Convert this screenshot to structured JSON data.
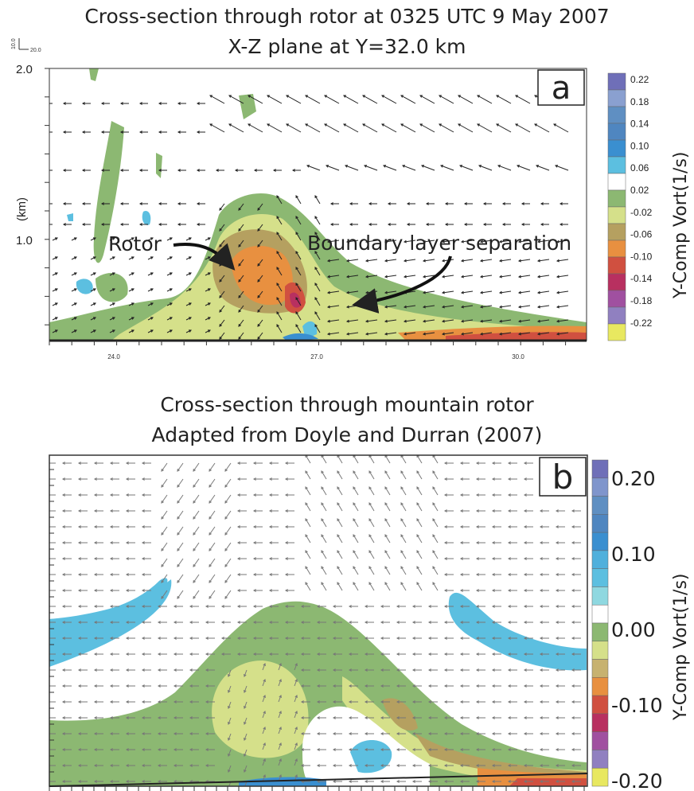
{
  "chart_data": [
    {
      "type": "heatmap",
      "panel_label": "a",
      "title": "Cross-section through rotor at 0325 UTC 9 May 2007",
      "subtitle": "X-Z plane at Y=32.0 km",
      "ylabel": "(km)",
      "y_ticks": [
        "1.0",
        "2.0"
      ],
      "x_ticks": [
        "24.0",
        "27.0",
        "30.0"
      ],
      "xlim": [
        22.8,
        30.8
      ],
      "ylim": [
        0.4,
        2.0
      ],
      "reference_vector": [
        "10.0",
        "20.0"
      ],
      "colorbar_label": "Y-Comp Vort(1/s)",
      "colorbar_levels": [
        "0.22",
        "0.18",
        "0.14",
        "0.10",
        "0.06",
        "0.02",
        "-0.02",
        "-0.06",
        "-0.10",
        "-0.14",
        "-0.18",
        "-0.22"
      ],
      "annotations": [
        "Rotor",
        "Boundary layer separation"
      ]
    },
    {
      "type": "heatmap",
      "panel_label": "b",
      "title": "Cross-section through mountain rotor",
      "subtitle": "Adapted from Doyle and Durran (2007)",
      "colorbar_label": "Y-Comp Vort(1/s)",
      "colorbar_levels": [
        "0.20",
        "0.10",
        "0.00",
        "-0.10",
        "-0.20"
      ]
    }
  ],
  "colors": {
    "vort_scale": [
      "#6f6fb8",
      "#7f95cc",
      "#5f8fc2",
      "#4f86c0",
      "#3a8fd0",
      "#5cbfe0",
      "#8fd8e0",
      "#ffffff",
      "#8cb872",
      "#d5e08a",
      "#b5a060",
      "#e89040",
      "#d05040",
      "#b83060",
      "#a050a0",
      "#9080c0",
      "#e8e860"
    ]
  }
}
